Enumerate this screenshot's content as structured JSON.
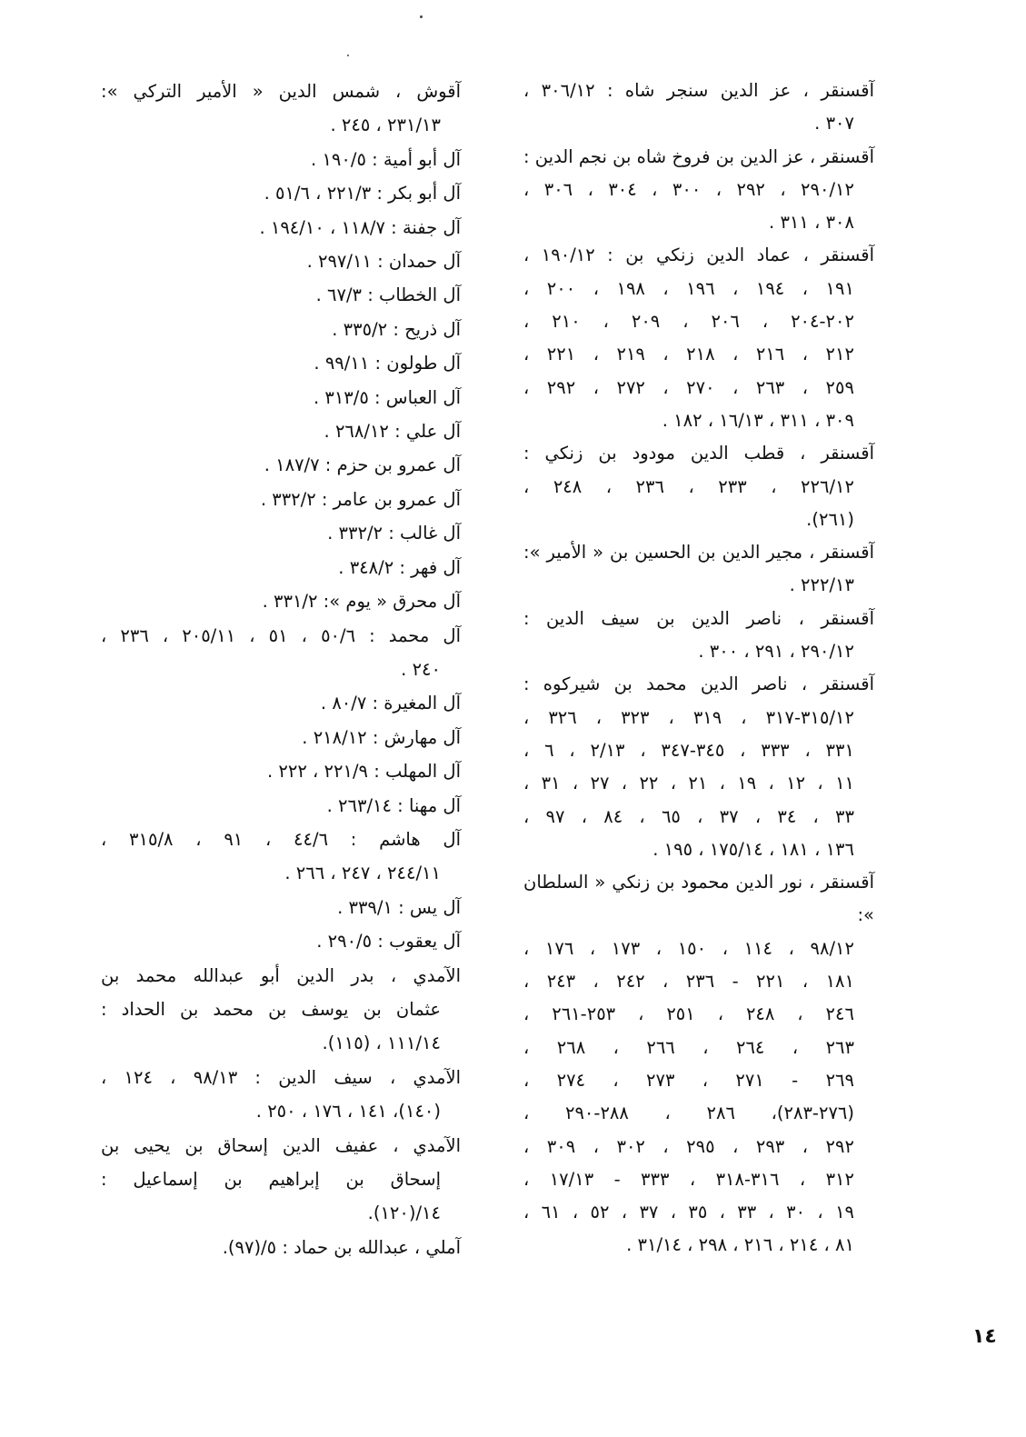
{
  "page_number": "١٤",
  "right_column": [
    {
      "lines": [
        "آقسنقر ، عز الدين سنجر شاه : ١٢/٣٠٦ ،",
        "٣٠٧ ."
      ]
    },
    {
      "lines": [
        "آقسنقر ، عز الدين بن فروخ شاه بن نجم الدين :",
        "١٢/٢٩٠ ، ٢٩٢ ، ٣٠٠ ، ٣٠٤ ، ٣٠٦ ،",
        "٣٠٨ ، ٣١١ ."
      ]
    },
    {
      "lines": [
        "آقسنقر ، عماد الدين زنكي بن : ١٢/١٩٠ ،",
        "١٩١ ، ١٩٤ ، ١٩٦ ، ١٩٨ ، ٢٠٠ ،",
        "٢٠٢-٢٠٤ ، ٢٠٦ ، ٢٠٩ ، ٢١٠ ،",
        "٢١٢ ، ٢١٦ ، ٢١٨ ، ٢١٩ ، ٢٢١ ،",
        "٢٥٩ ، ٢٦٣ ، ٢٧٠ ، ٢٧٢ ، ٢٩٢ ،",
        "٣٠٩ ، ٣١١ ، ١٣/١٦ ، ١٨٢ ."
      ]
    },
    {
      "lines": [
        "آقسنقر ، قطب الدين مودود بن زنكي :",
        "١٢/٢٢٦ ، ٢٣٣ ، ٢٣٦ ، ٢٤٨ ،",
        "(٢٦١)."
      ]
    },
    {
      "lines": [
        "آقسنقر ، مجير الدين بن الحسين بن « الأمير »:",
        "١٣/٢٢٢ ."
      ]
    },
    {
      "lines": [
        "آقسنقر ، ناصر الدين بن سيف الدين :",
        "١٢/٢٩٠ ، ٢٩١ ، ٣٠٠ ."
      ]
    },
    {
      "lines": [
        "آقسنقر ، ناصر الدين محمد بن شيركوه :",
        "١٢/٣١٥-٣١٧ ، ٣١٩ ، ٣٢٣ ، ٣٢٦ ،",
        "٣٣١ ، ٣٣٣ ، ٣٤٥-٣٤٧ ، ١٣/٢ ، ٦ ،",
        "١١ ، ١٢ ، ١٩ ، ٢١ ، ٢٢ ، ٢٧ ، ٣١ ،",
        "٣٣ ، ٣٤ ، ٣٧ ، ٦٥ ، ٨٤ ، ٩٧ ،",
        "١٣٦ ، ١٨١ ، ١٤/١٧٥ ، ١٩٥ ."
      ]
    },
    {
      "lines": [
        "آقسنقر ، نور الدين محمود بن زنكي « السلطان »:",
        "١٢/٩٨ ، ١١٤ ، ١٥٠ ، ١٧٣ ، ١٧٦ ،",
        "١٨١ ، ٢٢١ - ٢٣٦ ، ٢٤٢ ، ٢٤٣ ،",
        "٢٤٦ ، ٢٤٨ ، ٢٥١ ، ٢٥٣-٢٦١ ،",
        "٢٦٣ ، ٢٦٤ ، ٢٦٦ ، ٢٦٨ ،",
        "٢٦٩ - ٢٧١ ، ٢٧٣ ، ٢٧٤ ،",
        "(٢٧٦-٢٨٣)، ٢٨٦ ، ٢٨٨-٢٩٠ ،",
        "٢٩٢ ، ٢٩٣ ، ٢٩٥ ، ٣٠٢ ، ٣٠٩ ،",
        "٣١٢ ، ٣١٦-٣١٨ ، ٣٣٣ - ١٣/١٧ ،",
        "١٩ ، ٣٠ ، ٣٣ ، ٣٥ ، ٣٧ ، ٥٢ ، ٦١ ،",
        "٨١ ، ٢١٤ ، ٢١٦ ، ٢٩٨ ، ١٤/٣١ ."
      ]
    }
  ],
  "left_column": [
    {
      "lines": [
        "آقوش ، شمس الدين « الأمير التركي »:",
        "١٣/٢٣١ ، ٢٤٥ ."
      ]
    },
    {
      "lines": [
        "آل أبو أمية : ٥/١٩٠ ."
      ]
    },
    {
      "lines": [
        "آل أبو بكر : ٣/٢٢١ ، ٦/٥١ ."
      ]
    },
    {
      "lines": [
        "آل جفنة : ٧/١١٨ ، ١٠/١٩٤ ."
      ]
    },
    {
      "lines": [
        "آل حمدان : ١١/٢٩٧ ."
      ]
    },
    {
      "lines": [
        "آل الخطاب : ٣/٦٧ ."
      ]
    },
    {
      "lines": [
        "آل ذريح : ٢/٣٣٥ ."
      ]
    },
    {
      "lines": [
        "آل طولون : ١١/٩٩ ."
      ]
    },
    {
      "lines": [
        "آل العباس : ٥/٣١٣ ."
      ]
    },
    {
      "lines": [
        "آل علي : ١٢/٢٦٨ ."
      ]
    },
    {
      "lines": [
        "آل عمرو بن حزم : ٧/١٨٧ ."
      ]
    },
    {
      "lines": [
        "آل عمرو بن عامر : ٢/٣٣٢ ."
      ]
    },
    {
      "lines": [
        "آل غالب : ٢/٣٣٢ ."
      ]
    },
    {
      "lines": [
        "آل فهر : ٢/٣٤٨ ."
      ]
    },
    {
      "lines": [
        "آل محرق « يوم »: ٢/٣٣١ ."
      ]
    },
    {
      "lines": [
        "آل محمد : ٦/٥٠ ، ٥١ ، ١١/٢٠٥ ، ٢٣٦ ،",
        "٢٤٠ ."
      ]
    },
    {
      "lines": [
        "آل المغيرة : ٧/٨٠ ."
      ]
    },
    {
      "lines": [
        "آل مهارش : ١٢/٢١٨ ."
      ]
    },
    {
      "lines": [
        "آل المهلب : ٩/٢٢١ ، ٢٢٢ ."
      ]
    },
    {
      "lines": [
        "آل مهنا : ١٤/٢٦٣ ."
      ]
    },
    {
      "lines": [
        "آل هاشم : ٦/٤٤ ، ٩١ ، ٨/٣١٥ ،",
        "١١/٢٤٤ ، ٢٤٧ ، ٢٦٦ ."
      ]
    },
    {
      "lines": [
        "آل يس : ١/٣٣٩ ."
      ]
    },
    {
      "lines": [
        "آل يعقوب : ٥/٢٩٠ ."
      ]
    },
    {
      "lines": [
        "الآمدي ، بدر الدين أبو عبدالله محمد بن",
        "عثمان بن يوسف بن محمد بن الحداد :",
        "١٤/١١١ ، (١١٥)."
      ]
    },
    {
      "lines": [
        "الآمدي ، سيف الدين : ١٣/٩٨ ، ١٢٤ ،",
        "(١٤٠)، ١٤١ ، ١٧٦ ، ٢٥٠ ."
      ]
    },
    {
      "lines": [
        "الآمدي ، عفيف الدين إسحاق بن يحيى بن",
        "إسحاق بن إبراهيم بن إسماعيل :",
        "١٤/(١٢٠)."
      ]
    },
    {
      "lines": [
        "آملي ، عبدالله بن حماد : ٥/(٩٧)."
      ]
    }
  ]
}
